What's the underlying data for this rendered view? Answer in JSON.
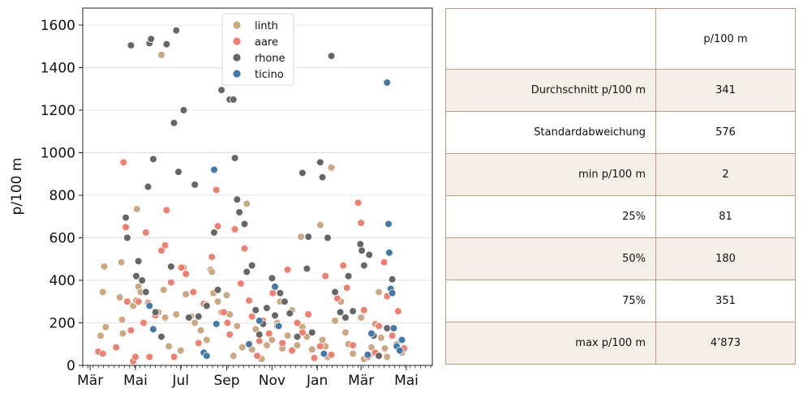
{
  "chart_data": {
    "type": "scatter",
    "ylabel": "p/100 m",
    "xlabel": "",
    "xlim": [
      "2020-02-20",
      "2021-06-05"
    ],
    "ylim": [
      0,
      1680
    ],
    "yticks": [
      0,
      200,
      400,
      600,
      800,
      1000,
      1200,
      1400,
      1600
    ],
    "ytick_labels": [
      "0",
      "200",
      "400",
      "600",
      "800",
      "1000",
      "1200",
      "1400",
      "1600"
    ],
    "xticks": [
      "2020-03-01",
      "2020-05-01",
      "2020-07-01",
      "2020-09-01",
      "2020-11-01",
      "2021-01-01",
      "2021-03-01",
      "2021-05-01"
    ],
    "xtick_labels": [
      "Mär",
      "Mai",
      "Jul",
      "Sep",
      "Nov",
      "Jan",
      "Mär",
      "Mai"
    ],
    "grid": "horizontal",
    "legend_position": "top-center",
    "series": [
      {
        "name": "linth",
        "color": "#c9a882",
        "points": [
          [
            "2020-03-15",
            140
          ],
          [
            "2020-03-18",
            345
          ],
          [
            "2020-03-20",
            465
          ],
          [
            "2020-03-22",
            180
          ],
          [
            "2020-04-10",
            320
          ],
          [
            "2020-04-12",
            485
          ],
          [
            "2020-04-13",
            215
          ],
          [
            "2020-04-14",
            150
          ],
          [
            "2020-04-28",
            280
          ],
          [
            "2020-05-02",
            305
          ],
          [
            "2020-05-03",
            735
          ],
          [
            "2020-05-05",
            370
          ],
          [
            "2020-05-08",
            345
          ],
          [
            "2020-05-18",
            295
          ],
          [
            "2020-05-25",
            175
          ],
          [
            "2020-06-01",
            250
          ],
          [
            "2020-06-05",
            1460
          ],
          [
            "2020-06-08",
            355
          ],
          [
            "2020-06-10",
            225
          ],
          [
            "2020-06-15",
            90
          ],
          [
            "2020-06-25",
            240
          ],
          [
            "2020-07-01",
            70
          ],
          [
            "2020-07-05",
            460
          ],
          [
            "2020-07-08",
            335
          ],
          [
            "2020-07-15",
            230
          ],
          [
            "2020-07-20",
            200
          ],
          [
            "2020-07-28",
            165
          ],
          [
            "2020-08-05",
            120
          ],
          [
            "2020-08-10",
            450
          ],
          [
            "2020-08-12",
            440
          ],
          [
            "2020-08-14",
            340
          ],
          [
            "2020-08-20",
            300
          ],
          [
            "2020-08-25",
            250
          ],
          [
            "2020-09-01",
            330
          ],
          [
            "2020-09-05",
            240
          ],
          [
            "2020-09-10",
            45
          ],
          [
            "2020-09-15",
            185
          ],
          [
            "2020-09-22",
            85
          ],
          [
            "2020-09-28",
            760
          ],
          [
            "2020-10-05",
            75
          ],
          [
            "2020-10-10",
            170
          ],
          [
            "2020-10-18",
            30
          ],
          [
            "2020-10-25",
            95
          ],
          [
            "2020-11-01",
            120
          ],
          [
            "2020-11-08",
            200
          ],
          [
            "2020-11-12",
            300
          ],
          [
            "2020-11-15",
            80
          ],
          [
            "2020-11-22",
            140
          ],
          [
            "2020-11-28",
            260
          ],
          [
            "2020-12-05",
            95
          ],
          [
            "2020-12-10",
            605
          ],
          [
            "2020-12-12",
            180
          ],
          [
            "2020-12-18",
            135
          ],
          [
            "2020-12-25",
            75
          ],
          [
            "2021-01-05",
            660
          ],
          [
            "2021-01-08",
            120
          ],
          [
            "2021-01-12",
            90
          ],
          [
            "2021-01-15",
            40
          ],
          [
            "2021-01-20",
            930
          ],
          [
            "2021-01-25",
            210
          ],
          [
            "2021-02-02",
            300
          ],
          [
            "2021-02-08",
            155
          ],
          [
            "2021-02-12",
            100
          ],
          [
            "2021-02-18",
            55
          ],
          [
            "2021-03-01",
            225
          ],
          [
            "2021-03-05",
            30
          ],
          [
            "2021-03-12",
            45
          ],
          [
            "2021-03-15",
            85
          ],
          [
            "2021-03-20",
            195
          ],
          [
            "2021-03-25",
            345
          ],
          [
            "2021-03-28",
            130
          ],
          [
            "2021-04-02",
            80
          ],
          [
            "2021-04-05",
            40
          ],
          [
            "2021-04-12",
            175
          ],
          [
            "2021-04-18",
            100
          ],
          [
            "2021-04-25",
            60
          ]
        ]
      },
      {
        "name": "aare",
        "color": "#f07f70",
        "points": [
          [
            "2020-03-12",
            65
          ],
          [
            "2020-03-18",
            55
          ],
          [
            "2020-04-05",
            85
          ],
          [
            "2020-04-15",
            955
          ],
          [
            "2020-04-18",
            650
          ],
          [
            "2020-04-20",
            300
          ],
          [
            "2020-04-25",
            165
          ],
          [
            "2020-04-28",
            20
          ],
          [
            "2020-05-01",
            40
          ],
          [
            "2020-05-05",
            300
          ],
          [
            "2020-05-12",
            200
          ],
          [
            "2020-05-15",
            625
          ],
          [
            "2020-05-20",
            40
          ],
          [
            "2020-05-28",
            235
          ],
          [
            "2020-06-05",
            540
          ],
          [
            "2020-06-10",
            565
          ],
          [
            "2020-06-12",
            730
          ],
          [
            "2020-06-18",
            390
          ],
          [
            "2020-06-22",
            40
          ],
          [
            "2020-07-02",
            460
          ],
          [
            "2020-07-08",
            430
          ],
          [
            "2020-07-12",
            225
          ],
          [
            "2020-07-18",
            345
          ],
          [
            "2020-07-25",
            105
          ],
          [
            "2020-08-01",
            290
          ],
          [
            "2020-08-05",
            285
          ],
          [
            "2020-08-12",
            510
          ],
          [
            "2020-08-18",
            825
          ],
          [
            "2020-08-20",
            655
          ],
          [
            "2020-08-28",
            250
          ],
          [
            "2020-09-02",
            200
          ],
          [
            "2020-09-05",
            145
          ],
          [
            "2020-09-12",
            640
          ],
          [
            "2020-09-20",
            385
          ],
          [
            "2020-09-25",
            550
          ],
          [
            "2020-10-01",
            305
          ],
          [
            "2020-10-05",
            230
          ],
          [
            "2020-10-12",
            45
          ],
          [
            "2020-10-15",
            115
          ],
          [
            "2020-10-20",
            210
          ],
          [
            "2020-10-28",
            150
          ],
          [
            "2020-11-02",
            340
          ],
          [
            "2020-11-08",
            185
          ],
          [
            "2020-11-15",
            105
          ],
          [
            "2020-11-22",
            450
          ],
          [
            "2020-11-28",
            70
          ],
          [
            "2020-12-05",
            200
          ],
          [
            "2020-12-12",
            155
          ],
          [
            "2020-12-20",
            240
          ],
          [
            "2020-12-28",
            35
          ],
          [
            "2021-01-05",
            90
          ],
          [
            "2021-01-12",
            420
          ],
          [
            "2021-01-20",
            50
          ],
          [
            "2021-01-28",
            315
          ],
          [
            "2021-02-05",
            470
          ],
          [
            "2021-02-10",
            365
          ],
          [
            "2021-02-18",
            95
          ],
          [
            "2021-02-25",
            765
          ],
          [
            "2021-03-01",
            670
          ],
          [
            "2021-03-05",
            260
          ],
          [
            "2021-03-10",
            40
          ],
          [
            "2021-03-20",
            60
          ],
          [
            "2021-03-25",
            185
          ],
          [
            "2021-04-01",
            485
          ],
          [
            "2021-04-05",
            325
          ],
          [
            "2021-04-12",
            140
          ],
          [
            "2021-04-20",
            255
          ],
          [
            "2021-04-28",
            80
          ]
        ]
      },
      {
        "name": "rhone",
        "color": "#666666",
        "points": [
          [
            "2020-04-18",
            695
          ],
          [
            "2020-04-20",
            600
          ],
          [
            "2020-04-25",
            1505
          ],
          [
            "2020-05-02",
            420
          ],
          [
            "2020-05-05",
            490
          ],
          [
            "2020-05-10",
            400
          ],
          [
            "2020-05-15",
            345
          ],
          [
            "2020-05-18",
            840
          ],
          [
            "2020-05-20",
            1515
          ],
          [
            "2020-05-22",
            1535
          ],
          [
            "2020-05-25",
            970
          ],
          [
            "2020-05-28",
            250
          ],
          [
            "2020-06-05",
            135
          ],
          [
            "2020-06-12",
            1510
          ],
          [
            "2020-06-18",
            465
          ],
          [
            "2020-06-22",
            1140
          ],
          [
            "2020-06-25",
            1575
          ],
          [
            "2020-06-28",
            910
          ],
          [
            "2020-07-05",
            1200
          ],
          [
            "2020-07-12",
            225
          ],
          [
            "2020-07-20",
            850
          ],
          [
            "2020-07-25",
            230
          ],
          [
            "2020-08-05",
            280
          ],
          [
            "2020-08-15",
            625
          ],
          [
            "2020-08-20",
            355
          ],
          [
            "2020-08-25",
            1295
          ],
          [
            "2020-09-05",
            1250
          ],
          [
            "2020-09-10",
            1250
          ],
          [
            "2020-09-12",
            975
          ],
          [
            "2020-09-15",
            780
          ],
          [
            "2020-09-18",
            720
          ],
          [
            "2020-09-25",
            665
          ],
          [
            "2020-09-28",
            440
          ],
          [
            "2020-10-05",
            470
          ],
          [
            "2020-10-10",
            260
          ],
          [
            "2020-10-15",
            145
          ],
          [
            "2020-10-20",
            195
          ],
          [
            "2020-10-25",
            270
          ],
          [
            "2020-11-01",
            410
          ],
          [
            "2020-11-05",
            235
          ],
          [
            "2020-11-12",
            340
          ],
          [
            "2020-11-18",
            300
          ],
          [
            "2020-11-25",
            245
          ],
          [
            "2020-12-05",
            135
          ],
          [
            "2020-12-12",
            905
          ],
          [
            "2020-12-18",
            455
          ],
          [
            "2020-12-20",
            605
          ],
          [
            "2020-12-25",
            155
          ],
          [
            "2021-01-05",
            955
          ],
          [
            "2021-01-08",
            885
          ],
          [
            "2021-01-15",
            600
          ],
          [
            "2021-01-20",
            1455
          ],
          [
            "2021-01-25",
            345
          ],
          [
            "2021-02-01",
            250
          ],
          [
            "2021-02-08",
            225
          ],
          [
            "2021-02-12",
            420
          ],
          [
            "2021-02-18",
            255
          ],
          [
            "2021-02-28",
            570
          ],
          [
            "2021-03-02",
            540
          ],
          [
            "2021-03-05",
            470
          ],
          [
            "2021-03-12",
            520
          ],
          [
            "2021-03-18",
            140
          ],
          [
            "2021-03-25",
            45
          ],
          [
            "2021-04-05",
            175
          ],
          [
            "2021-04-12",
            405
          ]
        ]
      },
      {
        "name": "ticino",
        "color": "#4477aa",
        "points": [
          [
            "2020-05-20",
            280
          ],
          [
            "2020-05-25",
            170
          ],
          [
            "2020-08-01",
            60
          ],
          [
            "2020-08-05",
            45
          ],
          [
            "2020-08-15",
            920
          ],
          [
            "2020-08-18",
            195
          ],
          [
            "2020-10-01",
            100
          ],
          [
            "2020-10-15",
            210
          ],
          [
            "2020-11-05",
            370
          ],
          [
            "2020-11-10",
            185
          ],
          [
            "2021-01-10",
            55
          ],
          [
            "2021-03-10",
            50
          ],
          [
            "2021-03-15",
            150
          ],
          [
            "2021-04-05",
            1330
          ],
          [
            "2021-04-07",
            665
          ],
          [
            "2021-04-08",
            530
          ],
          [
            "2021-04-10",
            360
          ],
          [
            "2021-04-12",
            340
          ],
          [
            "2021-04-14",
            175
          ],
          [
            "2021-04-18",
            90
          ],
          [
            "2021-04-22",
            70
          ],
          [
            "2021-04-25",
            120
          ]
        ]
      }
    ]
  },
  "table": {
    "header": [
      "",
      "p/100 m"
    ],
    "rows": [
      {
        "label": "Durchschnitt p/100 m",
        "value": "341"
      },
      {
        "label": "Standardabweichung",
        "value": "576"
      },
      {
        "label": "min p/100 m",
        "value": "2"
      },
      {
        "label": "25%",
        "value": "81"
      },
      {
        "label": "50%",
        "value": "180"
      },
      {
        "label": "75%",
        "value": "351"
      },
      {
        "label": "max p/100 m",
        "value": "4’873"
      }
    ]
  }
}
